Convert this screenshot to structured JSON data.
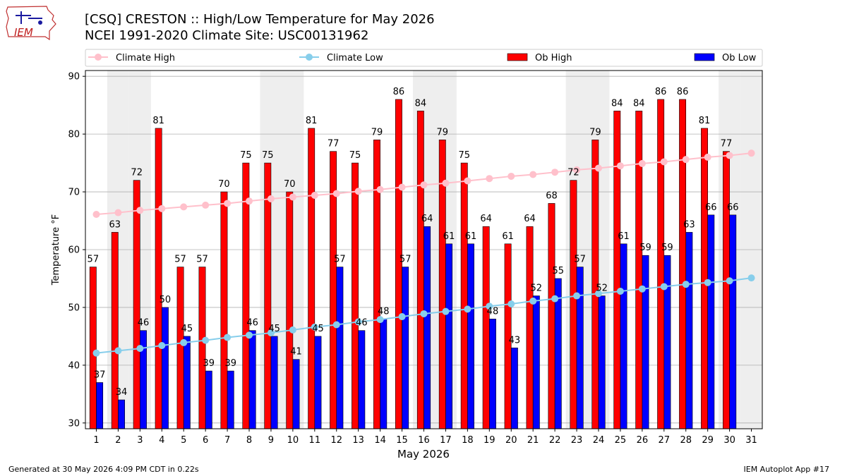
{
  "header": {
    "title": "[CSQ] CRESTON :: High/Low Temperature for May 2026",
    "subtitle": "NCEI 1991-2020 Climate Site: USC00131962",
    "logo_text": "IEM"
  },
  "footer": {
    "left": "Generated at 30 May 2026 4:09 PM CDT in 0.22s",
    "right": "IEM Autoplot App #17"
  },
  "colors": {
    "ob_high": "#ff0000",
    "ob_low": "#0000ff",
    "climate_high": "#ffc0cb",
    "climate_low": "#87ceeb",
    "weekend_shade": "#eeeeee",
    "grid": "#b0b0b0"
  },
  "chart_data": {
    "type": "bar",
    "xlabel": "May 2026",
    "ylabel": "Temperature °F",
    "ylim": [
      29,
      91
    ],
    "yticks": [
      30,
      40,
      50,
      60,
      70,
      80,
      90
    ],
    "grid": "horizontal",
    "legend_position": "top",
    "categories": [
      1,
      2,
      3,
      4,
      5,
      6,
      7,
      8,
      9,
      10,
      11,
      12,
      13,
      14,
      15,
      16,
      17,
      18,
      19,
      20,
      21,
      22,
      23,
      24,
      25,
      26,
      27,
      28,
      29,
      30,
      31
    ],
    "shaded_days": [
      2,
      3,
      9,
      10,
      16,
      17,
      23,
      24,
      30,
      31
    ],
    "series": [
      {
        "name": "Ob High",
        "kind": "bar",
        "values": [
          57,
          63,
          72,
          81,
          57,
          57,
          70,
          75,
          75,
          70,
          81,
          77,
          75,
          79,
          86,
          84,
          79,
          75,
          64,
          61,
          64,
          68,
          72,
          79,
          84,
          84,
          86,
          86,
          81,
          77,
          null
        ]
      },
      {
        "name": "Ob Low",
        "kind": "bar",
        "values": [
          37,
          34,
          46,
          50,
          45,
          39,
          39,
          46,
          45,
          41,
          45,
          57,
          46,
          48,
          57,
          64,
          61,
          61,
          48,
          43,
          52,
          55,
          57,
          52,
          61,
          59,
          59,
          63,
          66,
          66,
          null
        ]
      },
      {
        "name": "Climate High",
        "kind": "line",
        "values": [
          66.1,
          66.4,
          66.8,
          67.1,
          67.4,
          67.7,
          68.0,
          68.4,
          68.8,
          69.1,
          69.4,
          69.7,
          70.1,
          70.4,
          70.8,
          71.2,
          71.5,
          71.9,
          72.3,
          72.7,
          73.0,
          73.4,
          73.8,
          74.1,
          74.5,
          74.9,
          75.2,
          75.6,
          76.0,
          76.3,
          76.7
        ]
      },
      {
        "name": "Climate Low",
        "kind": "line",
        "values": [
          42.1,
          42.5,
          42.9,
          43.4,
          43.9,
          44.3,
          44.8,
          45.2,
          45.6,
          46.1,
          46.6,
          47.0,
          47.5,
          47.9,
          48.4,
          48.9,
          49.3,
          49.7,
          50.2,
          50.6,
          51.1,
          51.5,
          52.0,
          52.4,
          52.8,
          53.2,
          53.6,
          54.0,
          54.3,
          54.6,
          55.1
        ]
      }
    ]
  }
}
